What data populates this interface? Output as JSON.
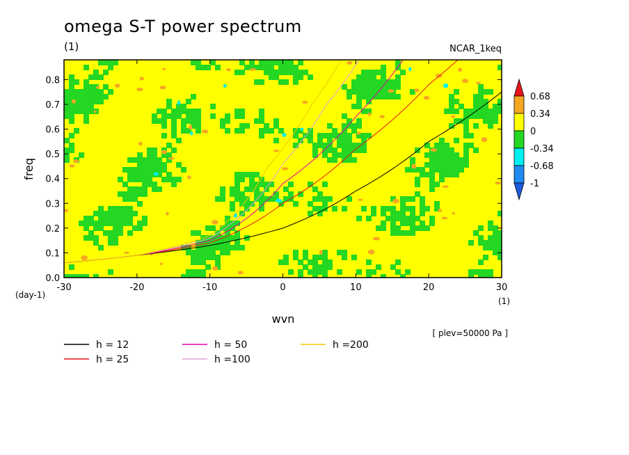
{
  "chart_data": {
    "type": "heatmap",
    "title": "omega S-T power spectrum",
    "subtitle": "(1)",
    "model_label": "NCAR_1keq",
    "xlabel": "wvn",
    "ylabel": "freq",
    "x_unit": "(1)",
    "y_unit": "(day-1)",
    "xlim": [
      -30,
      30
    ],
    "ylim": [
      0,
      0.88
    ],
    "x_ticks": [
      -30,
      -20,
      -10,
      0,
      10,
      20,
      30
    ],
    "y_ticks": [
      0.0,
      0.1,
      0.2,
      0.3,
      0.4,
      0.5,
      0.6,
      0.7,
      0.8
    ],
    "y_tick_labels": [
      "0.0",
      "0.1",
      "0.2",
      "0.3",
      "0.4",
      "0.5",
      "0.6",
      "0.7",
      "0.8"
    ],
    "annotation": "[ plev=50000 Pa ]",
    "colorbar": {
      "labels": [
        "0.68",
        "0.34",
        "0",
        "-0.34",
        "-0.68",
        "-1"
      ],
      "levels": [
        0.68,
        0.34,
        0,
        -0.34,
        -0.68,
        -1
      ],
      "colors_top_to_bottom": [
        "#e8141b",
        "#f5a623",
        "#ffff00",
        "#23d723",
        "#00f0f0",
        "#1e8cf0",
        "#1e5adc"
      ]
    },
    "contour_fill": {
      "dominant_colors": [
        "#ffff00",
        "#23d723"
      ],
      "sparse_colors": [
        "#f5a623",
        "#00f0f0"
      ]
    },
    "series": [
      {
        "name": "h = 12",
        "color": "#000000",
        "x": [
          -30,
          -20,
          -10,
          0,
          10,
          20,
          30
        ],
        "y": [
          0.06,
          0.09,
          0.13,
          0.2,
          0.35,
          0.55,
          0.75
        ]
      },
      {
        "name": "h = 25",
        "color": "#e8141b",
        "x": [
          -30,
          -20,
          -10,
          0,
          10,
          20,
          24
        ],
        "y": [
          0.06,
          0.09,
          0.14,
          0.3,
          0.52,
          0.78,
          0.88
        ]
      },
      {
        "name": "h = 50",
        "color": "#e000a0",
        "x": [
          -30,
          -20,
          -10,
          0,
          10,
          16.5
        ],
        "y": [
          0.06,
          0.09,
          0.15,
          0.38,
          0.65,
          0.88
        ]
      },
      {
        "name": "h =100",
        "color": "#e6a0dc",
        "x": [
          -30,
          -20,
          -10,
          0,
          6,
          10.5
        ],
        "y": [
          0.06,
          0.09,
          0.16,
          0.46,
          0.7,
          0.88
        ]
      },
      {
        "name": "h =200",
        "color": "#f0c800",
        "x": [
          -30,
          -20,
          -10,
          -2,
          4,
          8
        ],
        "y": [
          0.06,
          0.09,
          0.17,
          0.45,
          0.7,
          0.88
        ]
      }
    ]
  }
}
